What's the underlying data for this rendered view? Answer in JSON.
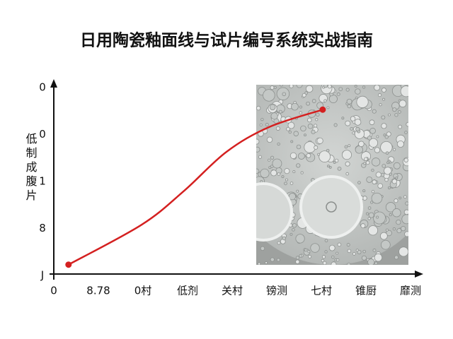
{
  "chart_data": {
    "type": "line",
    "title": "日用陶瓷釉面线与试片编号系统实战指南",
    "y_label": "低制成腹片",
    "xlim": [
      0,
      8
    ],
    "xticks": [
      {
        "value": 0,
        "label": "0"
      },
      {
        "value": 1,
        "label": "8.78"
      },
      {
        "value": 2,
        "label": "0村"
      },
      {
        "value": 3,
        "label": "低剂"
      },
      {
        "value": 4,
        "label": "关村"
      },
      {
        "value": 5,
        "label": "镑测"
      },
      {
        "value": 6,
        "label": "七村"
      },
      {
        "value": 7,
        "label": "锥厨"
      },
      {
        "value": 8,
        "label": "靡测"
      }
    ],
    "ylim": [
      0,
      4
    ],
    "yticks": [
      {
        "value": 0,
        "label": "J"
      },
      {
        "value": 1,
        "label": "8"
      },
      {
        "value": 2,
        "label": "1"
      },
      {
        "value": 3,
        "label": "0"
      },
      {
        "value": 4,
        "label": "0"
      }
    ],
    "series": [
      {
        "color": "#d42020",
        "x": [
          0.33,
          1.97,
          2.92,
          3.87,
          4.83,
          6.03
        ],
        "values": [
          0.23,
          1.08,
          1.8,
          2.63,
          3.16,
          3.53
        ]
      }
    ]
  }
}
